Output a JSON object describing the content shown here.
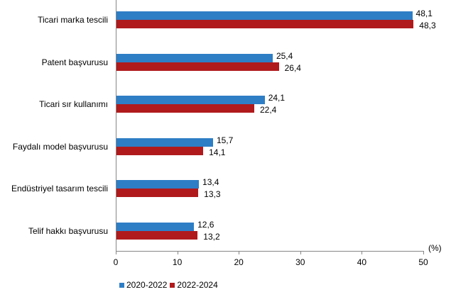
{
  "chart_data": {
    "type": "bar",
    "orientation": "horizontal",
    "title": "",
    "xlabel": "(%)",
    "ylabel": "",
    "xlim": [
      0,
      50
    ],
    "x_ticks": [
      "0",
      "10",
      "20",
      "30",
      "40",
      "50"
    ],
    "grid": false,
    "legend_position": "bottom",
    "categories": [
      "Ticari marka tescili",
      "Patent başvurusu",
      "Ticari sır kullanımı",
      "Faydalı model başvurusu",
      "Endüstriyel tasarım tescili",
      "Telif hakkı başvurusu"
    ],
    "series": [
      {
        "name": "2020-2022",
        "color": "#2e7ec6",
        "values": [
          48.1,
          25.4,
          24.1,
          15.7,
          13.4,
          12.6
        ],
        "labels": [
          "48,1",
          "25,4",
          "24,1",
          "15,7",
          "13,4",
          "12,6"
        ]
      },
      {
        "name": "2022-2024",
        "color": "#b01a1c",
        "values": [
          48.3,
          26.4,
          22.4,
          14.1,
          13.3,
          13.2
        ],
        "labels": [
          "48,3",
          "26,4",
          "22,4",
          "14,1",
          "13,3",
          "13,2"
        ]
      }
    ]
  },
  "axis": {
    "unit": "(%)",
    "ticks": [
      "0",
      "10",
      "20",
      "30",
      "40",
      "50"
    ]
  },
  "legend": {
    "items": [
      "2020-2022",
      "2022-2024"
    ]
  },
  "categories": [
    "Ticari marka tescili",
    "Patent başvurusu",
    "Ticari sır kullanımı",
    "Faydalı model başvurusu",
    "Endüstriyel tasarım tescili",
    "Telif hakkı başvurusu"
  ],
  "labels_a": [
    "48,1",
    "25,4",
    "24,1",
    "15,7",
    "13,4",
    "12,6"
  ],
  "labels_b": [
    "48,3",
    "26,4",
    "22,4",
    "14,1",
    "13,3",
    "13,2"
  ]
}
